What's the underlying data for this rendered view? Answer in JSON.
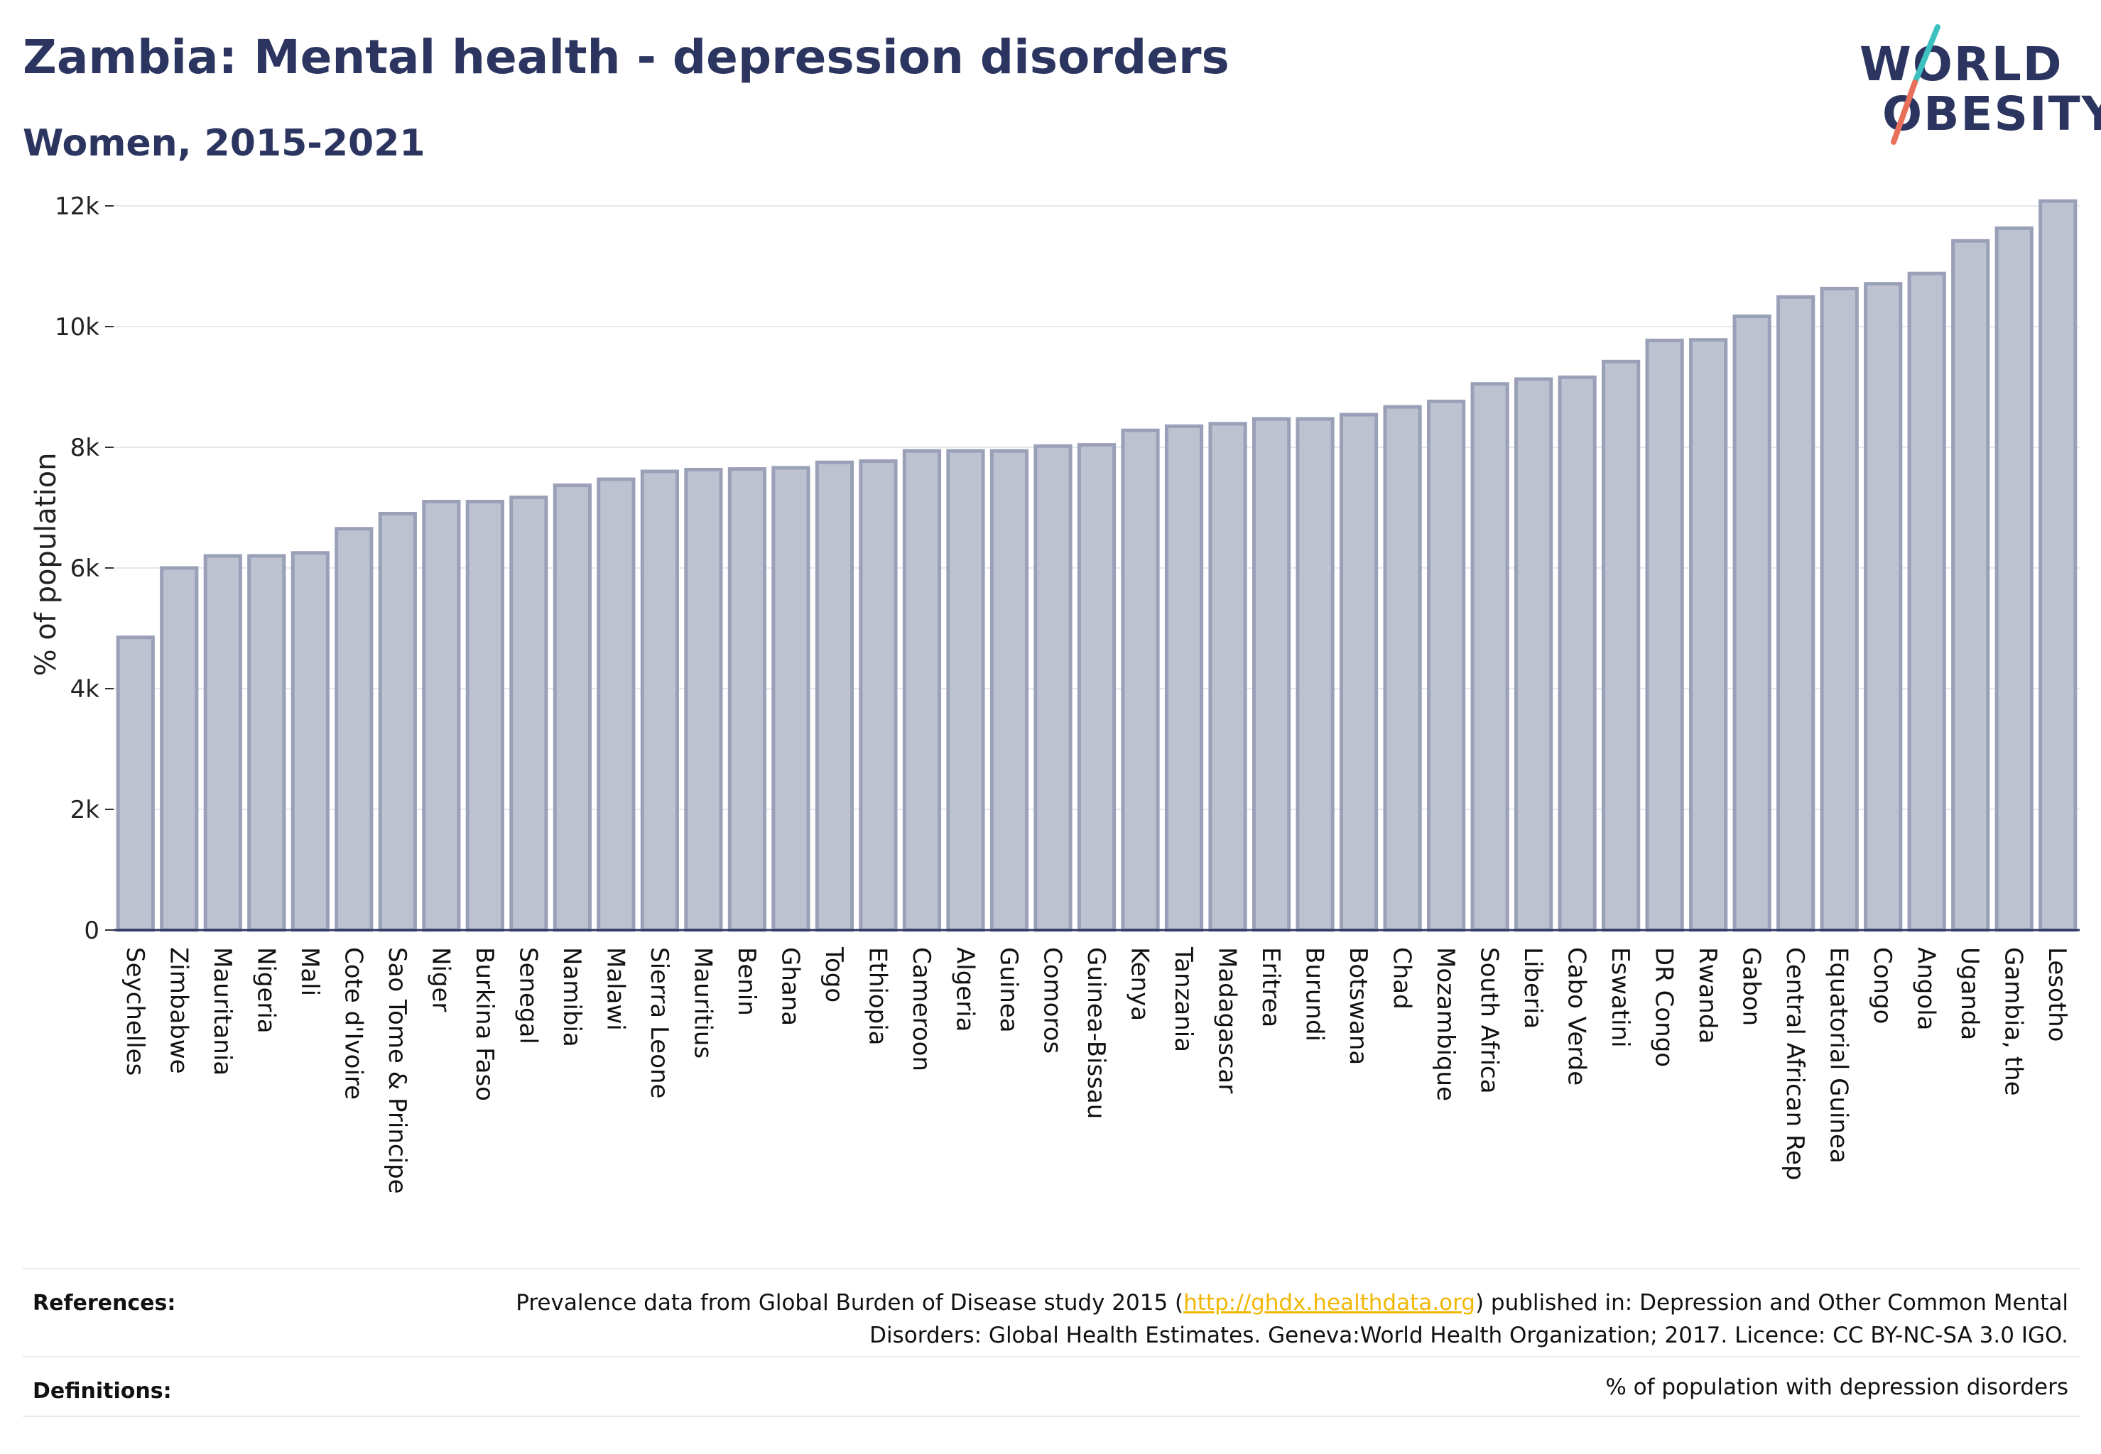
{
  "header": {
    "title": "Zambia: Mental health - depression disorders",
    "subtitle": "Women, 2015-2021"
  },
  "logo": {
    "line1": "WORLD",
    "line2": "OBESITY",
    "slash_colors": [
      "#3cc0c0",
      "#e8705a"
    ]
  },
  "colors": {
    "bar_fill": "#bec2d0",
    "bar_stroke": "#9aa0b8",
    "text": "#2b3560",
    "grid": "#e6e8ef",
    "link": "#f2b705"
  },
  "chart_data": {
    "type": "bar",
    "title": "Zambia: Mental health - depression disorders",
    "subtitle": "Women, 2015-2021",
    "xlabel": "",
    "ylabel": "% of population",
    "ylim": [
      0,
      12000
    ],
    "yticks": [
      0,
      2000,
      4000,
      6000,
      8000,
      10000,
      12000
    ],
    "ytick_labels": [
      "0",
      "2k",
      "4k",
      "6k",
      "8k",
      "10k",
      "12k"
    ],
    "grid": true,
    "categories": [
      "Seychelles",
      "Zimbabwe",
      "Mauritania",
      "Nigeria",
      "Mali",
      "Cote d'Ivoire",
      "Sao Tome & Principe",
      "Niger",
      "Burkina Faso",
      "Senegal",
      "Namibia",
      "Malawi",
      "Sierra Leone",
      "Mauritius",
      "Benin",
      "Ghana",
      "Togo",
      "Ethiopia",
      "Cameroon",
      "Algeria",
      "Guinea",
      "Comoros",
      "Guinea-Bissau",
      "Kenya",
      "Tanzania",
      "Madagascar",
      "Eritrea",
      "Burundi",
      "Botswana",
      "Chad",
      "Mozambique",
      "South Africa",
      "Liberia",
      "Cabo Verde",
      "Eswatini",
      "DR Congo",
      "Rwanda",
      "Gabon",
      "Central African Rep",
      "Equatorial Guinea",
      "Congo",
      "Angola",
      "Uganda",
      "Gambia, the",
      "Lesotho"
    ],
    "values": [
      4850,
      6000,
      6200,
      6200,
      6250,
      6650,
      6900,
      7100,
      7100,
      7170,
      7370,
      7470,
      7600,
      7630,
      7640,
      7660,
      7750,
      7770,
      7940,
      7940,
      7940,
      8020,
      8040,
      8280,
      8350,
      8390,
      8470,
      8470,
      8540,
      8670,
      8760,
      9050,
      9130,
      9160,
      9420,
      9770,
      9780,
      10170,
      10490,
      10630,
      10710,
      10880,
      11420,
      11630,
      12080
    ]
  },
  "footer": {
    "references_label": "References:",
    "references_text_before": "Prevalence data from Global Burden of Disease study 2015 (",
    "references_link": "http://ghdx.healthdata.org",
    "references_text_after": ") published in: Depression and Other Common Mental Disorders: Global Health Estimates. Geneva:World Health Organization; 2017. Licence: CC BY-NC-SA 3.0 IGO.",
    "definitions_label": "Definitions:",
    "definitions_text": "% of population with depression disorders"
  }
}
